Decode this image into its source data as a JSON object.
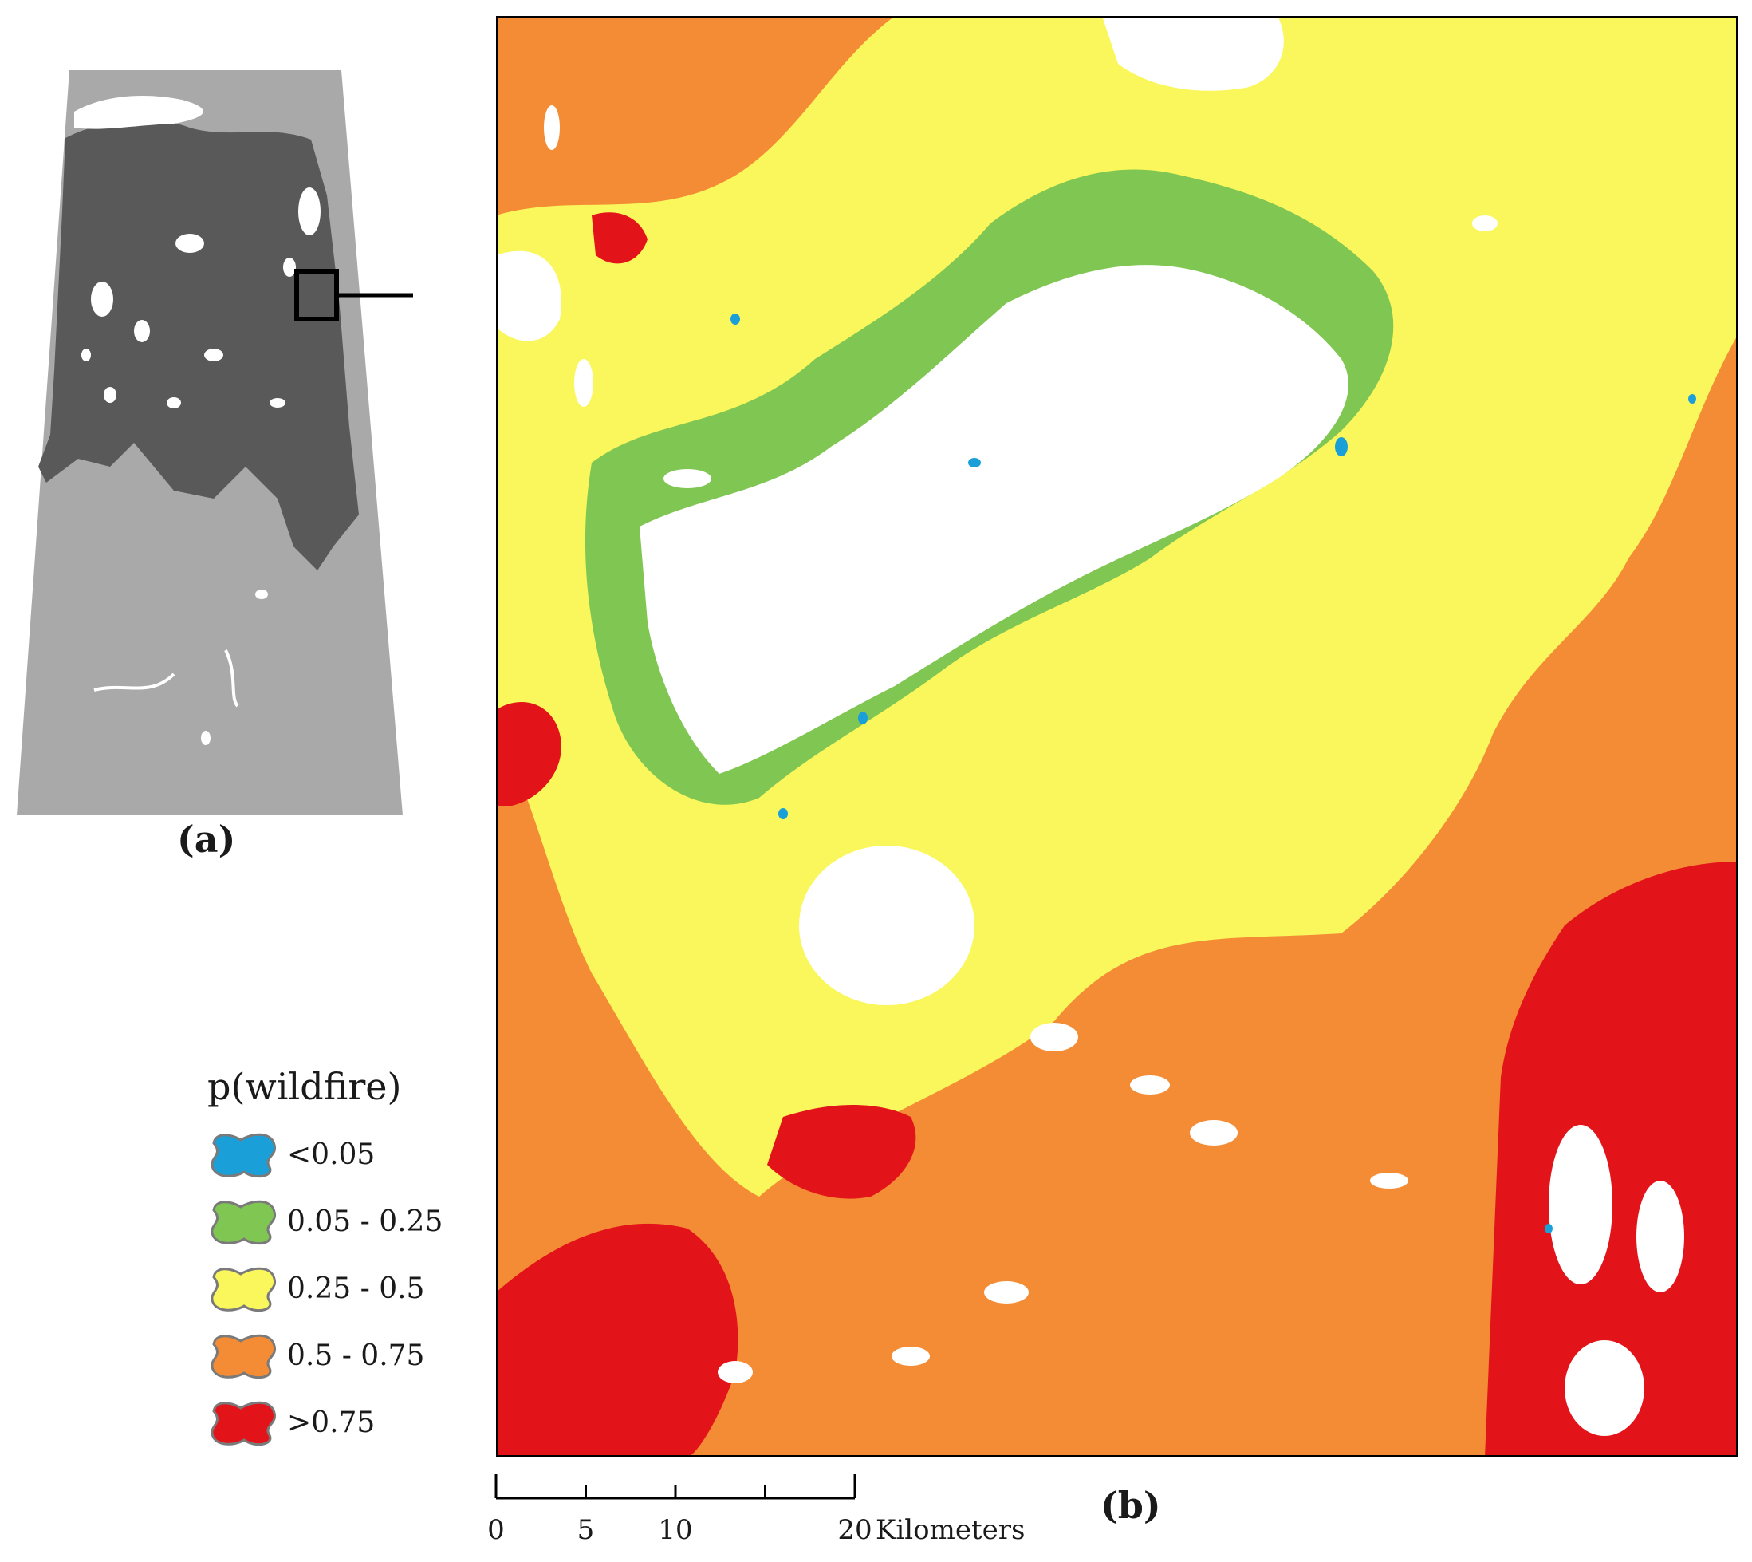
{
  "figure": {
    "panel_a_label": "(a)",
    "panel_b_label": "(b)"
  },
  "legend": {
    "title": "p(wildfire)",
    "classes": [
      {
        "label": "<0.05",
        "color": "#1a9fd8"
      },
      {
        "label": "0.05 - 0.25",
        "color": "#80c653"
      },
      {
        "label": "0.25 - 0.5",
        "color": "#f9f75c"
      },
      {
        "label": "0.5 - 0.75",
        "color": "#f48c36"
      },
      {
        "label": ">0.75",
        "color": "#e31419"
      }
    ]
  },
  "scale_bar": {
    "ticks": [
      "0",
      "5",
      "10",
      "",
      "20"
    ],
    "units": "Kilometers"
  },
  "inset": {
    "colors": {
      "land": "#a9a9a9",
      "study_area": "#595959",
      "water": "#ffffff"
    }
  }
}
